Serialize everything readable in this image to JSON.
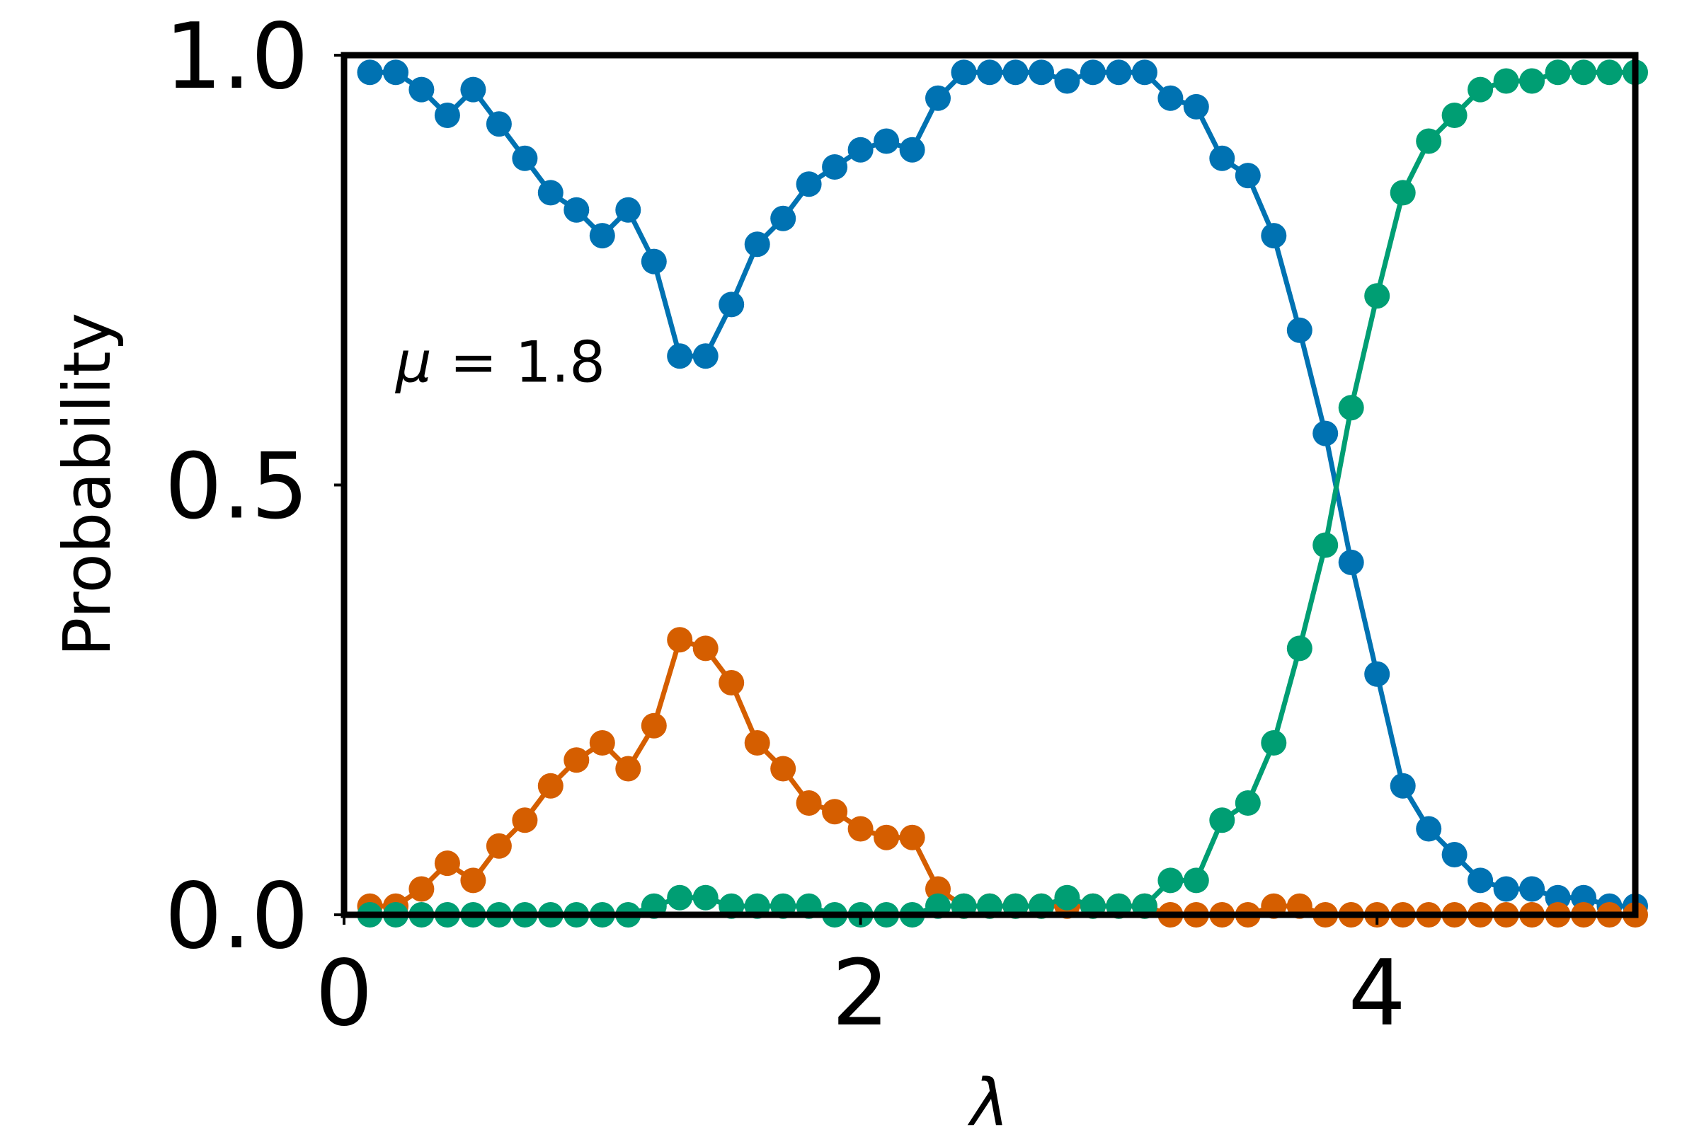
{
  "chart_data": {
    "type": "line",
    "xlabel": "λ",
    "ylabel": "Probability",
    "xlim": [
      0,
      5
    ],
    "ylim": [
      0,
      1
    ],
    "xticks": [
      0,
      2,
      4
    ],
    "xtick_labels": [
      "0",
      "2",
      "4"
    ],
    "yticks": [
      0,
      0.5,
      1
    ],
    "ytick_labels": [
      "0.0",
      "0.5",
      "1.0"
    ],
    "grid": false,
    "legend": "none",
    "annotation": {
      "var": "μ",
      "text": " = 1.8",
      "x": 0.2,
      "y": 0.62
    },
    "x": [
      0.1,
      0.2,
      0.3,
      0.4,
      0.5,
      0.6,
      0.7,
      0.8,
      0.9,
      1.0,
      1.1,
      1.2,
      1.3,
      1.4,
      1.5,
      1.6,
      1.7,
      1.8,
      1.9,
      2.0,
      2.1,
      2.2,
      2.3,
      2.4,
      2.5,
      2.6,
      2.7,
      2.8,
      2.9,
      3.0,
      3.1,
      3.2,
      3.3,
      3.4,
      3.5,
      3.6,
      3.7,
      3.8,
      3.9,
      4.0,
      4.1,
      4.2,
      4.3,
      4.4,
      4.5,
      4.6,
      4.7,
      4.8,
      4.9,
      5.0
    ],
    "series": [
      {
        "color": "#0072B2",
        "values": [
          0.98,
          0.98,
          0.96,
          0.93,
          0.96,
          0.92,
          0.88,
          0.84,
          0.82,
          0.79,
          0.82,
          0.76,
          0.65,
          0.65,
          0.71,
          0.78,
          0.81,
          0.85,
          0.87,
          0.89,
          0.9,
          0.89,
          0.95,
          0.98,
          0.98,
          0.98,
          0.98,
          0.97,
          0.98,
          0.98,
          0.98,
          0.95,
          0.94,
          0.88,
          0.86,
          0.79,
          0.68,
          0.56,
          0.41,
          0.28,
          0.15,
          0.1,
          0.07,
          0.04,
          0.03,
          0.03,
          0.02,
          0.02,
          0.01,
          0.01
        ]
      },
      {
        "color": "#D55E00",
        "values": [
          0.01,
          0.01,
          0.03,
          0.06,
          0.04,
          0.08,
          0.11,
          0.15,
          0.18,
          0.2,
          0.17,
          0.22,
          0.32,
          0.31,
          0.27,
          0.2,
          0.17,
          0.13,
          0.12,
          0.1,
          0.09,
          0.09,
          0.03,
          0.01,
          0.01,
          0.01,
          0.01,
          0.01,
          0.01,
          0.01,
          0.01,
          0.0,
          0.0,
          0.0,
          0.0,
          0.01,
          0.01,
          0.0,
          0.0,
          0.0,
          0.0,
          0.0,
          0.0,
          0.0,
          0.0,
          0.0,
          0.0,
          0.0,
          0.0,
          0.0
        ]
      },
      {
        "color": "#009E73",
        "values": [
          0.0,
          0.0,
          0.0,
          0.0,
          0.0,
          0.0,
          0.0,
          0.0,
          0.0,
          0.0,
          0.0,
          0.01,
          0.02,
          0.02,
          0.01,
          0.01,
          0.01,
          0.01,
          0.0,
          0.0,
          0.0,
          0.0,
          0.01,
          0.01,
          0.01,
          0.01,
          0.01,
          0.02,
          0.01,
          0.01,
          0.01,
          0.04,
          0.04,
          0.11,
          0.13,
          0.2,
          0.31,
          0.43,
          0.59,
          0.72,
          0.84,
          0.9,
          0.93,
          0.96,
          0.97,
          0.97,
          0.98,
          0.98,
          0.98,
          0.98
        ]
      }
    ]
  }
}
